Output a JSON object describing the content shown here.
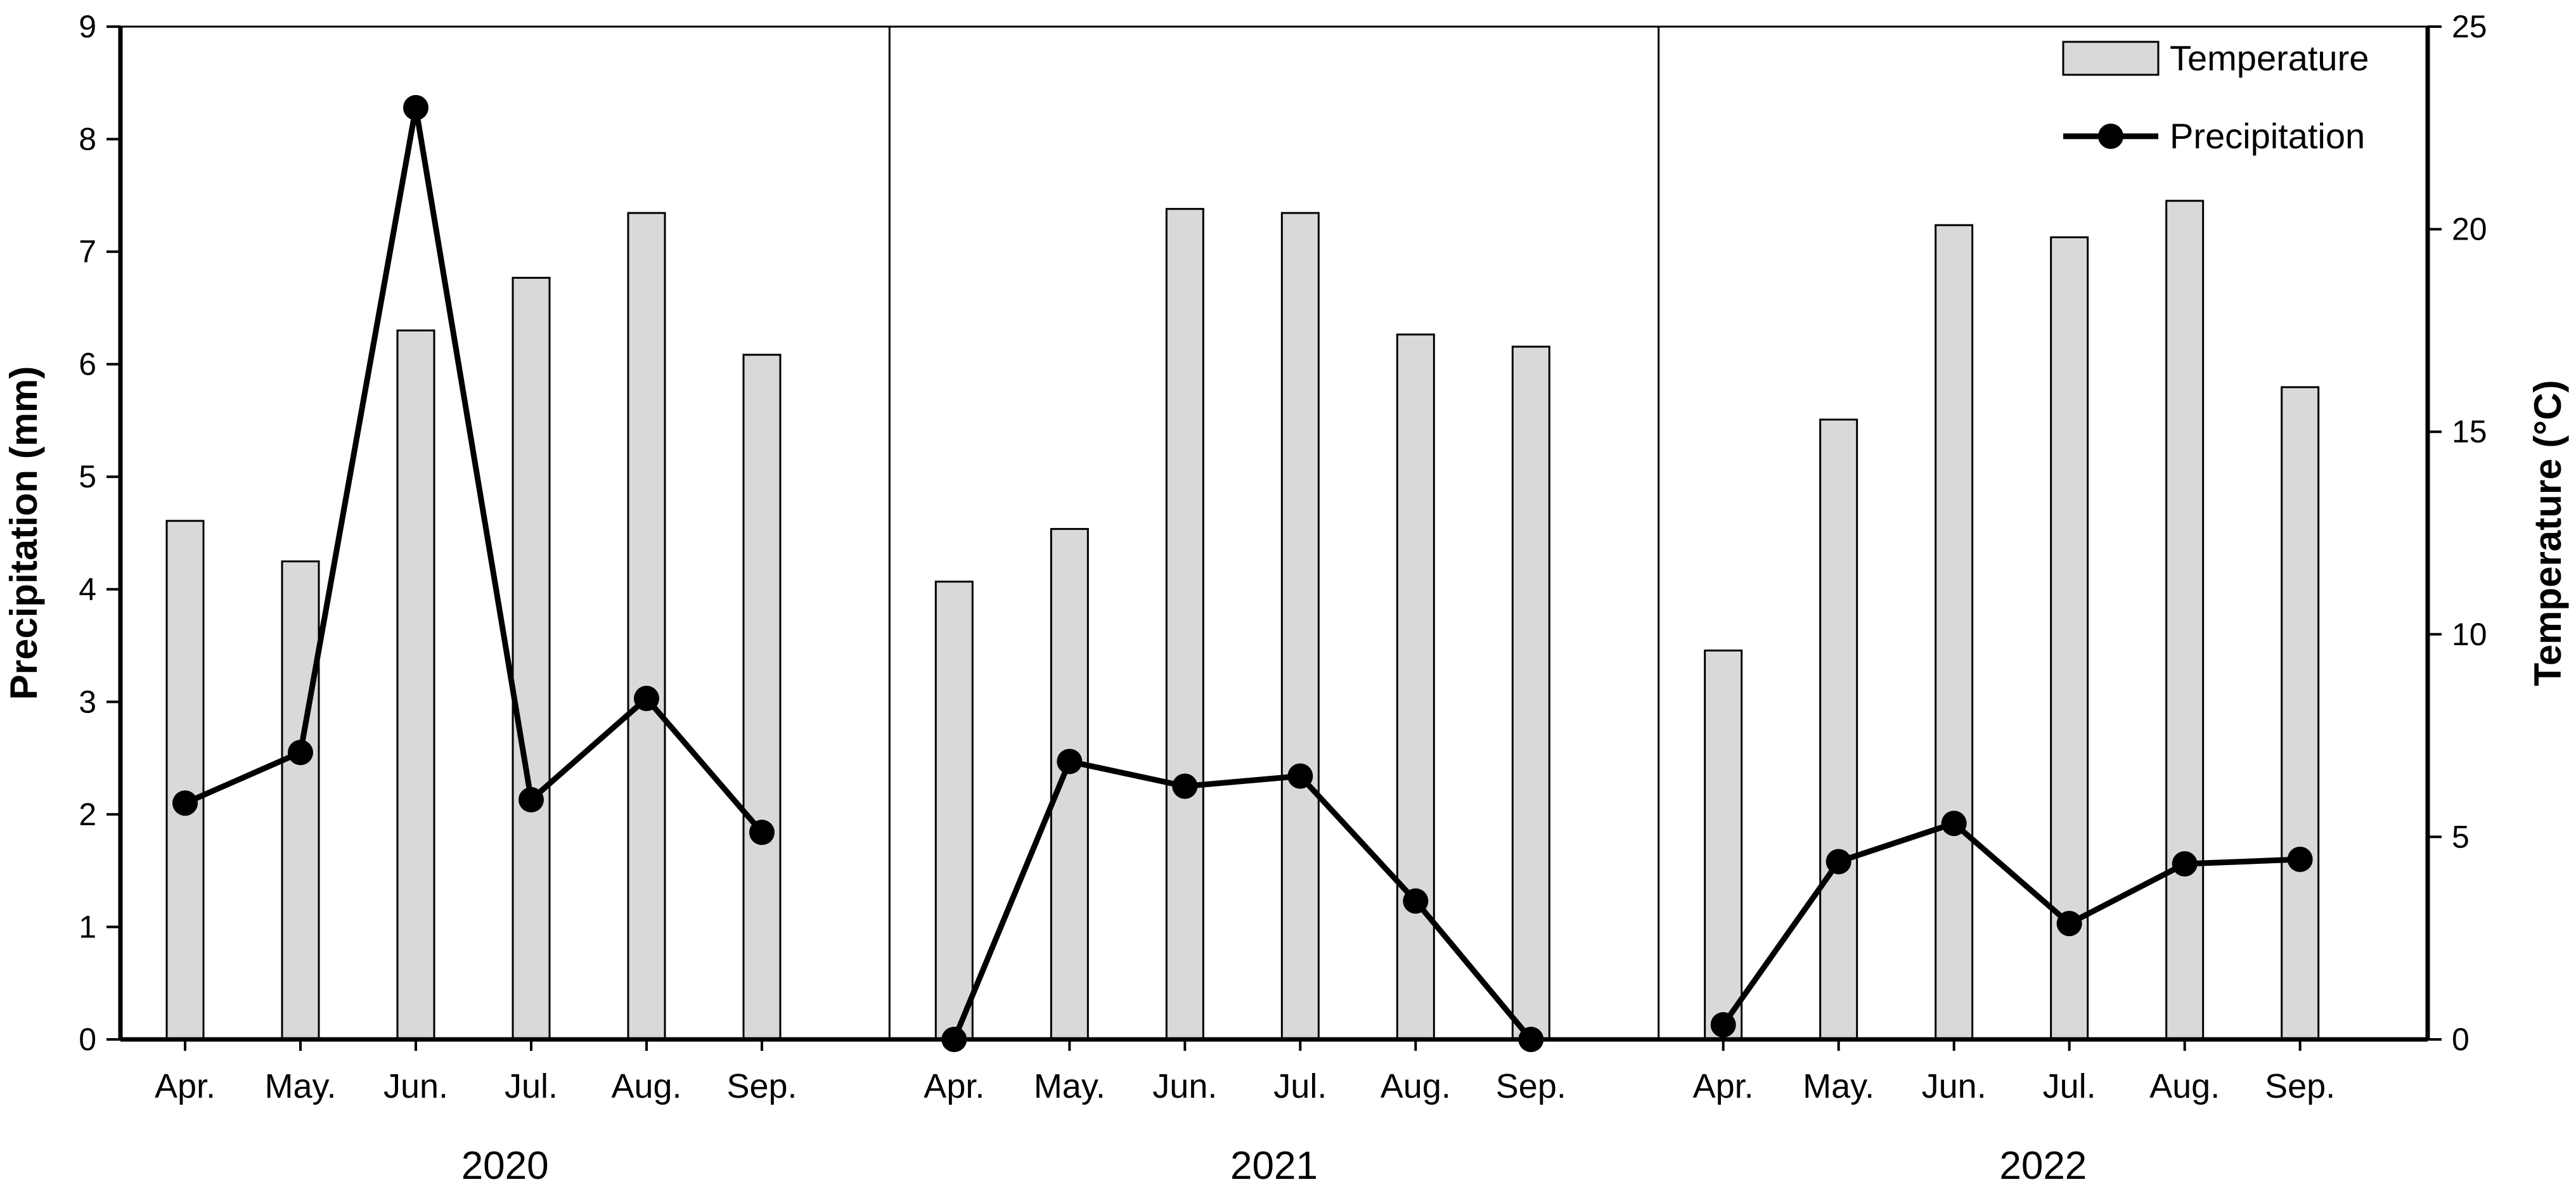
{
  "chart_data": {
    "type": "bar",
    "groups": [
      {
        "label": "2020",
        "categories": [
          "Apr.",
          "May.",
          "Jun.",
          "Jul.",
          "Aug.",
          "Sep."
        ]
      },
      {
        "label": "2021",
        "categories": [
          "Apr.",
          "May.",
          "Jun.",
          "Jul.",
          "Aug.",
          "Sep."
        ]
      },
      {
        "label": "2022",
        "categories": [
          "Apr.",
          "May.",
          "Jun.",
          "Jul.",
          "Aug.",
          "Sep."
        ]
      }
    ],
    "series": [
      {
        "name": "Temperature",
        "kind": "bar",
        "axis": "right",
        "color": "#d9d9d9",
        "values": [
          12.8,
          11.8,
          17.5,
          18.8,
          20.4,
          16.9,
          11.3,
          12.6,
          20.5,
          20.4,
          17.4,
          17.1,
          9.6,
          15.3,
          20.1,
          19.8,
          20.7,
          16.1
        ]
      },
      {
        "name": "Precipitation",
        "kind": "line",
        "axis": "left",
        "color": "#000000",
        "values": [
          2.1,
          2.55,
          8.28,
          2.13,
          3.03,
          1.84,
          0.0,
          2.47,
          2.25,
          2.34,
          1.23,
          0.0,
          0.13,
          1.58,
          1.92,
          1.03,
          1.56,
          1.6
        ]
      }
    ],
    "y_left": {
      "label": "Precipitation (mm)",
      "min": 0,
      "max": 9,
      "ticks": [
        "0",
        "1",
        "2",
        "3",
        "4",
        "5",
        "6",
        "7",
        "8",
        "9"
      ]
    },
    "y_right": {
      "label": "Temperature (°C)",
      "min": 0,
      "max": 25,
      "ticks": [
        "0",
        "5",
        "10",
        "15",
        "20",
        "25"
      ]
    },
    "legend": {
      "placement": "top-right",
      "items": [
        "Temperature",
        "Precipitation"
      ]
    },
    "grid": false
  }
}
